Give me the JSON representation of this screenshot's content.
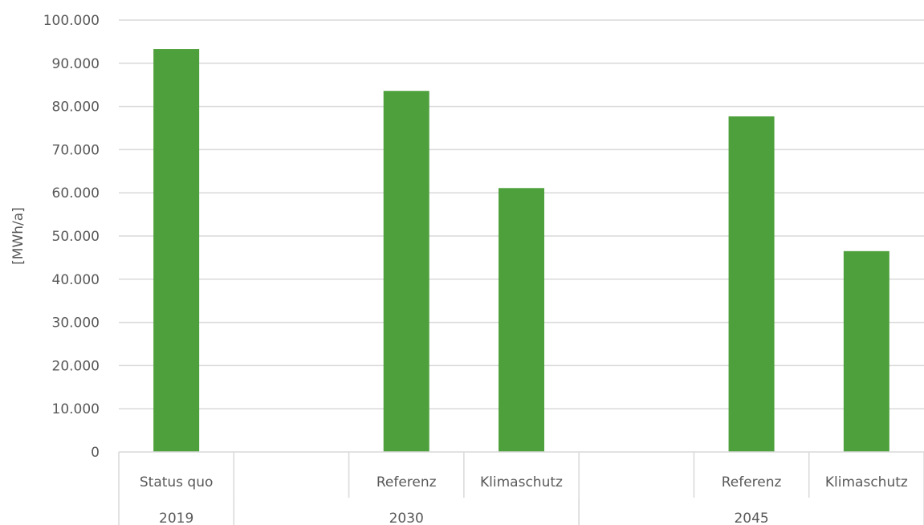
{
  "chart_data": {
    "type": "bar",
    "ylabel": "[MWh/a]",
    "ylim": [
      0,
      100000
    ],
    "ytick_step": 10000,
    "ytick_labels": [
      "0",
      "10.000",
      "20.000",
      "30.000",
      "40.000",
      "50.000",
      "60.000",
      "70.000",
      "80.000",
      "90.000",
      "100.000"
    ],
    "categories": [
      "Status quo",
      "",
      "Referenz",
      "Klimaschutz",
      "",
      "Referenz",
      "Klimaschutz"
    ],
    "values": [
      93300,
      null,
      83600,
      61100,
      null,
      77700,
      46500
    ],
    "groups": [
      {
        "label": "2019",
        "span": [
          0,
          1
        ]
      },
      {
        "label": "2030",
        "span": [
          1,
          4
        ]
      },
      {
        "label": "2045",
        "span": [
          4,
          7
        ]
      }
    ],
    "bar_color": "#4ea03c",
    "grid": true,
    "legend": "none"
  }
}
